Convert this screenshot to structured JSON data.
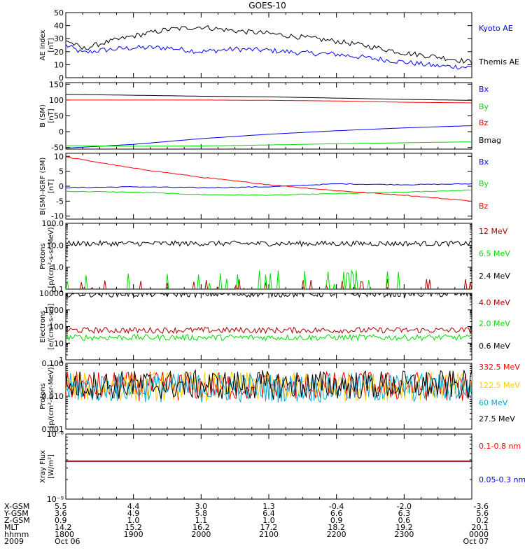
{
  "title": "GOES-10",
  "colors": {
    "black": "#000000",
    "blue": "#0000ff",
    "red": "#ff0000",
    "green": "#00dd00",
    "darkred": "#aa0000",
    "cyan": "#00aadd",
    "yellow": "#ffcc00"
  },
  "chart_data": [
    {
      "type": "line",
      "ylabel": [
        "AE Index",
        "[nT]"
      ],
      "ylim": [
        0,
        50
      ],
      "yticks": [
        {
          "v": 0,
          "t": "0"
        },
        {
          "v": 10,
          "t": "10"
        },
        {
          "v": 20,
          "t": "20"
        },
        {
          "v": 30,
          "t": "30"
        },
        {
          "v": 40,
          "t": "40"
        },
        {
          "v": 50,
          "t": "50"
        }
      ],
      "series": [
        {
          "name": "Kyoto AE",
          "color": "#0000ff",
          "x": [
            18.0,
            18.25,
            18.5,
            19.0,
            19.5,
            20.0,
            20.5,
            21.0,
            21.5,
            22.0,
            22.5,
            23.0,
            23.5,
            24.0
          ],
          "values": [
            25,
            19,
            21,
            23,
            23,
            20,
            22,
            21,
            19,
            18,
            15,
            12,
            9,
            8
          ]
        },
        {
          "name": "Themis AE",
          "color": "#000000",
          "x": [
            18.0,
            18.25,
            18.5,
            19.0,
            19.5,
            20.0,
            20.5,
            21.0,
            21.5,
            22.0,
            22.5,
            23.0,
            23.5,
            24.0
          ],
          "values": [
            29,
            22,
            26,
            32,
            37,
            39,
            36,
            34,
            31,
            28,
            24,
            19,
            16,
            12
          ]
        }
      ]
    },
    {
      "type": "line",
      "ylabel": [
        "B (SM)",
        "[nT]"
      ],
      "ylim": [
        -55,
        155
      ],
      "yticks": [
        {
          "v": -50,
          "t": "-50"
        },
        {
          "v": 0,
          "t": "0"
        },
        {
          "v": 50,
          "t": "50"
        },
        {
          "v": 100,
          "t": "100"
        },
        {
          "v": 150,
          "t": "150"
        }
      ],
      "series": [
        {
          "name": "Bx",
          "color": "#0000ff",
          "x": [
            18,
            19,
            20,
            21,
            22,
            23,
            24
          ],
          "values": [
            -52,
            -40,
            -22,
            -8,
            3,
            12,
            19
          ]
        },
        {
          "name": "By",
          "color": "#00dd00",
          "x": [
            18,
            19,
            20,
            21,
            22,
            23,
            24
          ],
          "values": [
            -44,
            -46,
            -45,
            -42,
            -38,
            -35,
            -32
          ]
        },
        {
          "name": "Bz",
          "color": "#ff0000",
          "x": [
            18,
            19,
            20,
            21,
            22,
            23,
            24
          ],
          "values": [
            100,
            100,
            100,
            99,
            97,
            93,
            91
          ]
        },
        {
          "name": "Bmag",
          "color": "#000000",
          "x": [
            18,
            19,
            20,
            21,
            22,
            23,
            24
          ],
          "values": [
            118,
            115,
            112,
            110,
            106,
            102,
            99
          ]
        }
      ]
    },
    {
      "type": "line",
      "ylabel": [
        "B(SM)-IGRF (SM)",
        "[nT]"
      ],
      "ylim": [
        -11,
        11
      ],
      "yticks": [
        {
          "v": -10,
          "t": "-10"
        },
        {
          "v": -5,
          "t": "-5"
        },
        {
          "v": 0,
          "t": "0"
        },
        {
          "v": 5,
          "t": "5"
        },
        {
          "v": 10,
          "t": "10"
        }
      ],
      "series": [
        {
          "name": "Bx",
          "color": "#0000ff",
          "x": [
            18,
            19,
            20,
            21,
            22,
            23,
            24
          ],
          "values": [
            -0.5,
            -0.2,
            -0.5,
            -0.2,
            0.8,
            0.5,
            0.8
          ]
        },
        {
          "name": "By",
          "color": "#00dd00",
          "x": [
            18,
            19,
            20,
            21,
            22,
            23,
            24
          ],
          "values": [
            -1.7,
            -2,
            -2.8,
            -3,
            -2.5,
            -2,
            -1.3
          ]
        },
        {
          "name": "Bz",
          "color": "#ff0000",
          "x": [
            18,
            19,
            20,
            21,
            22,
            23,
            24
          ],
          "values": [
            9.8,
            6,
            3,
            0.5,
            -1.5,
            -3,
            -5
          ]
        }
      ]
    },
    {
      "type": "line",
      "scale": "log",
      "ylabel": [
        "Protons",
        "[p/(cm²-s-sr-MeV)]"
      ],
      "ylim": [
        0.1,
        100
      ],
      "yticks": [
        {
          "v": 0.1,
          "t": "0.1"
        },
        {
          "v": 1,
          "t": "1.0"
        },
        {
          "v": 10,
          "t": "10.0"
        },
        {
          "v": 100,
          "t": "100.0"
        }
      ],
      "series": [
        {
          "name": "12 MeV",
          "color": "#aa0000",
          "x": [
            18,
            24
          ],
          "values": [
            0.1,
            0.1
          ]
        },
        {
          "name": "6.5 MeV",
          "color": "#00dd00",
          "x": [
            18,
            24
          ],
          "values": [
            0.15,
            0.15
          ]
        },
        {
          "name": "2.4 MeV",
          "color": "#000000",
          "x": [
            18,
            24
          ],
          "values": [
            12,
            12
          ]
        }
      ]
    },
    {
      "type": "line",
      "scale": "log",
      "ylabel": [
        "Electrons",
        "[e/(cm²-s-sr)]"
      ],
      "ylim": [
        1,
        10000
      ],
      "yticks": [
        {
          "v": 1,
          "t": "1"
        },
        {
          "v": 10,
          "t": "10"
        },
        {
          "v": 100,
          "t": "100"
        },
        {
          "v": 1000,
          "t": "1000"
        },
        {
          "v": 10000,
          "t": "10000"
        }
      ],
      "series": [
        {
          "name": "4.0 MeV",
          "color": "#aa0000",
          "x": [
            18,
            24
          ],
          "values": [
            60,
            60
          ]
        },
        {
          "name": "2.0 MeV",
          "color": "#00dd00",
          "x": [
            18,
            24
          ],
          "values": [
            22,
            22
          ]
        },
        {
          "name": "0.6 MeV",
          "color": "#000000",
          "x": [
            18,
            24
          ],
          "values": [
            9000,
            9000
          ]
        }
      ]
    },
    {
      "type": "line",
      "scale": "log",
      "ylabel": [
        "Protons",
        "[p/(cm²-s-sr-MeV)]"
      ],
      "ylim": [
        0.001,
        0.1
      ],
      "yticks": [
        {
          "v": 0.001,
          "t": "0.001"
        },
        {
          "v": 0.01,
          "t": "0.010"
        },
        {
          "v": 0.1,
          "t": "0.100"
        }
      ],
      "series": [
        {
          "name": "332.5 MeV",
          "color": "#ff0000",
          "x": [
            18,
            24
          ],
          "values": [
            0.02,
            0.02
          ]
        },
        {
          "name": "122.5 MeV",
          "color": "#ffcc00",
          "x": [
            18,
            24
          ],
          "values": [
            0.02,
            0.02
          ]
        },
        {
          "name": "60 MeV",
          "color": "#00aadd",
          "x": [
            18,
            24
          ],
          "values": [
            0.018,
            0.018
          ]
        },
        {
          "name": "27.5 MeV",
          "color": "#000000",
          "x": [
            18,
            24
          ],
          "values": [
            0.022,
            0.022
          ]
        }
      ]
    },
    {
      "type": "line",
      "scale": "log",
      "ylabel": [
        "Xray Flux",
        "[W/m²]"
      ],
      "ylim": [
        1e-09,
        1e-08
      ],
      "yticks": [
        {
          "v": 1e-09,
          "t": "10⁻⁹"
        },
        {
          "v": 1e-08,
          "t": "10⁻⁸"
        }
      ],
      "series": [
        {
          "name": "0.1-0.8 nm",
          "color": "#ff0000",
          "x": [
            18,
            24
          ],
          "values": [
            3.9e-09,
            3.9e-09
          ]
        },
        {
          "name": "0.05-0.3 nm",
          "color": "#0000ff",
          "x": [
            18,
            24
          ],
          "values": [
            3.75e-09,
            3.75e-09
          ]
        }
      ]
    }
  ],
  "xaxis": {
    "x": [
      18,
      19,
      20,
      21,
      22,
      23,
      24
    ],
    "rows": [
      {
        "label": "X-GSM",
        "values": [
          "5.5",
          "4.4",
          "3.0",
          "1.3",
          "-0.4",
          "-2.0",
          "-3.6"
        ]
      },
      {
        "label": "Y-GSM",
        "values": [
          "3.6",
          "4.9",
          "5.8",
          "6.4",
          "6.6",
          "6.3",
          "5.6"
        ]
      },
      {
        "label": "Z-GSM",
        "values": [
          "0.9",
          "1.0",
          "1.1",
          "1.0",
          "0.9",
          "0.6",
          "0.2"
        ]
      },
      {
        "label": "MLT",
        "values": [
          "14.2",
          "15.2",
          "16.2",
          "17.2",
          "18.2",
          "19.2",
          "20.1"
        ]
      },
      {
        "label": "hhmm",
        "values": [
          "1800",
          "1900",
          "2000",
          "2100",
          "2200",
          "2300",
          "0000"
        ]
      },
      {
        "label": "2009",
        "values": [
          "Oct 06",
          "",
          "",
          "",
          "",
          "",
          "Oct 07"
        ]
      }
    ]
  }
}
